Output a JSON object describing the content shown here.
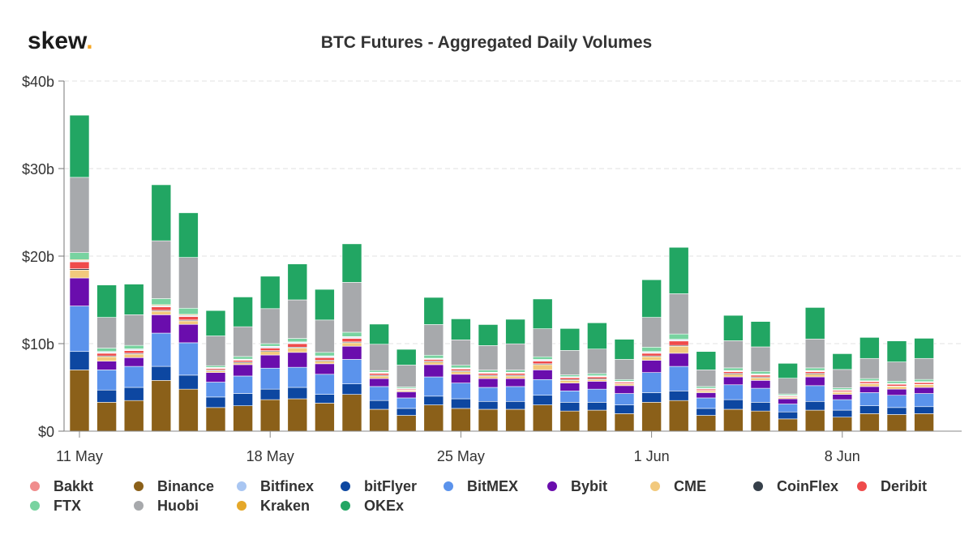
{
  "brand": {
    "name": "skew",
    "dot": ".",
    "dot_color": "#f5a623"
  },
  "chart_data": {
    "type": "bar",
    "stacked": true,
    "title": "BTC Futures - Aggregated Daily Volumes",
    "xlabel": "",
    "ylabel": "",
    "ylim": [
      0,
      40
    ],
    "y_unit": "b",
    "y_ticks": [
      "$0",
      "$10b",
      "$20b",
      "$30b",
      "$40b"
    ],
    "x_ticks": [
      {
        "label": "11 May",
        "index": 0
      },
      {
        "label": "18 May",
        "index": 7
      },
      {
        "label": "25 May",
        "index": 14
      },
      {
        "label": "1 Jun",
        "index": 21
      },
      {
        "label": "8 Jun",
        "index": 28
      }
    ],
    "grid": true,
    "legend_position": "bottom",
    "categories": [
      "2020-05-11",
      "2020-05-12",
      "2020-05-13",
      "2020-05-14",
      "2020-05-15",
      "2020-05-16",
      "2020-05-17",
      "2020-05-18",
      "2020-05-19",
      "2020-05-20",
      "2020-05-21",
      "2020-05-22",
      "2020-05-23",
      "2020-05-24",
      "2020-05-25",
      "2020-05-26",
      "2020-05-27",
      "2020-05-28",
      "2020-05-29",
      "2020-05-30",
      "2020-05-31",
      "2020-06-01",
      "2020-06-02",
      "2020-06-03",
      "2020-06-04",
      "2020-06-05",
      "2020-06-06",
      "2020-06-07",
      "2020-06-08",
      "2020-06-09",
      "2020-06-10",
      "2020-06-11"
    ],
    "series": [
      {
        "name": "Binance",
        "color": "#8b6019",
        "values": [
          7.0,
          3.3,
          3.5,
          5.8,
          4.8,
          2.7,
          2.9,
          3.6,
          3.7,
          3.2,
          4.2,
          2.5,
          1.8,
          3.0,
          2.6,
          2.5,
          2.5,
          3.0,
          2.3,
          2.4,
          2.0,
          3.3,
          3.5,
          1.8,
          2.5,
          2.3,
          1.4,
          2.4,
          1.6,
          2.0,
          1.9,
          2.0
        ]
      },
      {
        "name": "bitFlyer",
        "color": "#0d47a1",
        "values": [
          2.1,
          1.4,
          1.5,
          1.6,
          1.6,
          1.2,
          1.4,
          1.2,
          1.3,
          1.0,
          1.2,
          1.0,
          0.8,
          1.0,
          1.1,
          0.9,
          0.9,
          1.1,
          1.0,
          0.9,
          1.0,
          1.1,
          1.1,
          0.8,
          1.1,
          1.0,
          0.8,
          1.0,
          0.8,
          0.9,
          0.8,
          0.8
        ]
      },
      {
        "name": "BitMEX",
        "color": "#5b93ec",
        "values": [
          5.2,
          2.3,
          2.4,
          3.8,
          3.7,
          1.7,
          2.0,
          2.4,
          2.3,
          2.3,
          2.8,
          1.6,
          1.2,
          2.2,
          1.8,
          1.6,
          1.7,
          1.8,
          1.3,
          1.5,
          1.3,
          2.3,
          2.8,
          1.2,
          1.7,
          1.6,
          0.9,
          1.8,
          1.2,
          1.5,
          1.4,
          1.5
        ]
      },
      {
        "name": "Bybit",
        "color": "#6a0dad",
        "values": [
          3.2,
          1.0,
          1.0,
          2.1,
          2.1,
          1.1,
          1.3,
          1.5,
          1.7,
          1.2,
          1.5,
          0.9,
          0.7,
          1.4,
          1.0,
          1.0,
          0.9,
          1.1,
          0.9,
          0.9,
          0.9,
          1.4,
          1.5,
          0.6,
          0.9,
          0.9,
          0.6,
          1.0,
          0.6,
          0.7,
          0.7,
          0.7
        ]
      },
      {
        "name": "CME",
        "color": "#f2c97d",
        "values": [
          0.9,
          0.5,
          0.4,
          0.4,
          0.4,
          0.2,
          0.2,
          0.4,
          0.5,
          0.3,
          0.4,
          0.3,
          0.15,
          0.3,
          0.3,
          0.3,
          0.3,
          0.6,
          0.3,
          0.2,
          0.2,
          0.4,
          0.8,
          0.2,
          0.3,
          0.3,
          0.15,
          0.3,
          0.25,
          0.3,
          0.3,
          0.3
        ]
      },
      {
        "name": "CoinFlex",
        "color": "#36404a",
        "values": [
          0.15,
          0.1,
          0.1,
          0.1,
          0.1,
          0.1,
          0.1,
          0.1,
          0.1,
          0.1,
          0.1,
          0.1,
          0.05,
          0.1,
          0.1,
          0.1,
          0.1,
          0.1,
          0.1,
          0.1,
          0.05,
          0.1,
          0.1,
          0.05,
          0.1,
          0.1,
          0.05,
          0.1,
          0.05,
          0.05,
          0.05,
          0.05
        ]
      },
      {
        "name": "Deribit",
        "color": "#ef4b4b",
        "values": [
          0.8,
          0.3,
          0.3,
          0.4,
          0.4,
          0.15,
          0.2,
          0.3,
          0.4,
          0.3,
          0.4,
          0.2,
          0.1,
          0.2,
          0.2,
          0.2,
          0.2,
          0.3,
          0.2,
          0.2,
          0.15,
          0.3,
          0.5,
          0.15,
          0.2,
          0.2,
          0.1,
          0.2,
          0.15,
          0.2,
          0.2,
          0.2
        ]
      },
      {
        "name": "Bakkt",
        "color": "#f08d8d",
        "values": [
          0.05,
          0.05,
          0.05,
          0.05,
          0.05,
          0.03,
          0.03,
          0.05,
          0.05,
          0.05,
          0.05,
          0.03,
          0.02,
          0.03,
          0.03,
          0.03,
          0.03,
          0.05,
          0.03,
          0.03,
          0.02,
          0.05,
          0.05,
          0.02,
          0.03,
          0.03,
          0.02,
          0.03,
          0.02,
          0.03,
          0.03,
          0.03
        ]
      },
      {
        "name": "Bitfinex",
        "color": "#a9c6f2",
        "values": [
          0.1,
          0.1,
          0.1,
          0.1,
          0.1,
          0.05,
          0.05,
          0.1,
          0.1,
          0.1,
          0.1,
          0.05,
          0.05,
          0.05,
          0.05,
          0.05,
          0.05,
          0.1,
          0.05,
          0.05,
          0.05,
          0.1,
          0.1,
          0.05,
          0.05,
          0.05,
          0.05,
          0.05,
          0.05,
          0.05,
          0.05,
          0.05
        ]
      },
      {
        "name": "Kraken",
        "color": "#e5a82a",
        "values": [
          0.1,
          0.05,
          0.05,
          0.1,
          0.1,
          0.05,
          0.05,
          0.05,
          0.05,
          0.05,
          0.05,
          0.05,
          0.03,
          0.05,
          0.05,
          0.05,
          0.05,
          0.05,
          0.05,
          0.05,
          0.03,
          0.05,
          0.05,
          0.03,
          0.05,
          0.05,
          0.03,
          0.05,
          0.03,
          0.03,
          0.03,
          0.03
        ]
      },
      {
        "name": "FTX",
        "color": "#78d3a0",
        "values": [
          0.8,
          0.4,
          0.4,
          0.7,
          0.7,
          0.2,
          0.3,
          0.3,
          0.4,
          0.4,
          0.5,
          0.2,
          0.15,
          0.35,
          0.3,
          0.25,
          0.25,
          0.3,
          0.2,
          0.25,
          0.2,
          0.5,
          0.6,
          0.2,
          0.3,
          0.3,
          0.15,
          0.3,
          0.2,
          0.25,
          0.25,
          0.25
        ]
      },
      {
        "name": "Huobi",
        "color": "#a7a9ac",
        "values": [
          8.6,
          3.5,
          3.5,
          6.6,
          5.8,
          3.4,
          3.4,
          4.0,
          4.4,
          3.7,
          5.7,
          3.0,
          2.5,
          3.5,
          2.9,
          2.8,
          3.0,
          3.2,
          2.8,
          2.8,
          2.3,
          3.4,
          4.6,
          1.9,
          3.1,
          2.8,
          1.8,
          3.3,
          2.1,
          2.3,
          2.2,
          2.4
        ]
      },
      {
        "name": "OKEx",
        "color": "#22a663",
        "values": [
          7.1,
          3.7,
          3.5,
          6.4,
          5.1,
          2.9,
          3.4,
          3.7,
          4.1,
          3.5,
          4.4,
          2.3,
          1.8,
          3.1,
          2.4,
          2.4,
          2.8,
          3.4,
          2.5,
          3.0,
          2.3,
          4.3,
          5.3,
          2.1,
          2.9,
          2.9,
          1.7,
          3.6,
          1.8,
          2.4,
          2.4,
          2.3
        ]
      }
    ]
  },
  "legend": {
    "items": [
      {
        "name": "Bakkt",
        "color": "#f08d8d"
      },
      {
        "name": "Binance",
        "color": "#8b6019"
      },
      {
        "name": "Bitfinex",
        "color": "#a9c6f2"
      },
      {
        "name": "bitFlyer",
        "color": "#0d47a1"
      },
      {
        "name": "BitMEX",
        "color": "#5b93ec"
      },
      {
        "name": "Bybit",
        "color": "#6a0dad"
      },
      {
        "name": "CME",
        "color": "#f2c97d"
      },
      {
        "name": "CoinFlex",
        "color": "#36404a"
      },
      {
        "name": "Deribit",
        "color": "#ef4b4b"
      },
      {
        "name": "FTX",
        "color": "#78d3a0"
      },
      {
        "name": "Huobi",
        "color": "#a7a9ac"
      },
      {
        "name": "Kraken",
        "color": "#e5a82a"
      },
      {
        "name": "OKEx",
        "color": "#22a663"
      }
    ]
  }
}
